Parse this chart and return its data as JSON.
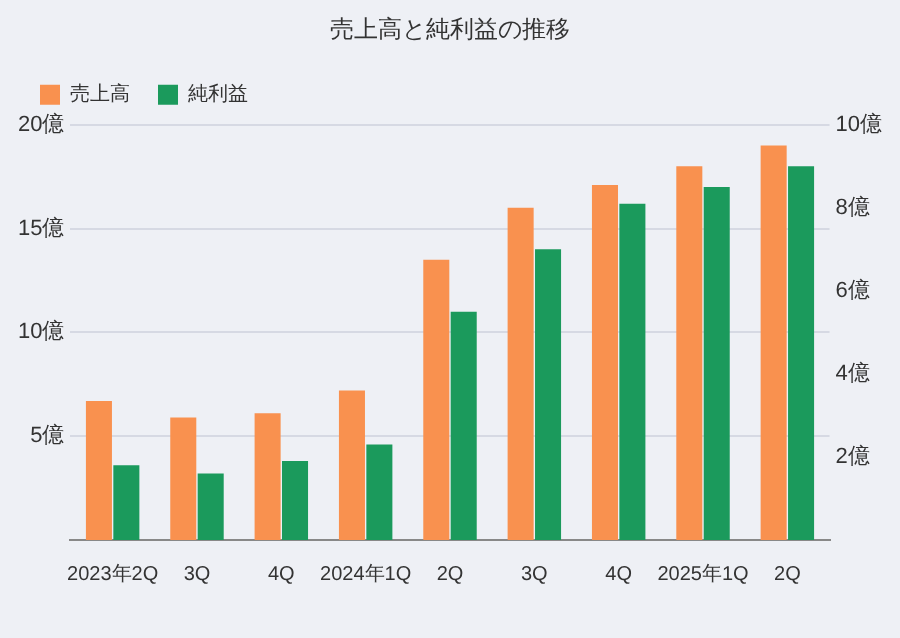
{
  "chart_data": {
    "type": "bar",
    "title": "売上高と純利益の推移",
    "categories": [
      "2023年2Q",
      "3Q",
      "4Q",
      "2024年1Q",
      "2Q",
      "3Q",
      "4Q",
      "2025年1Q",
      "2Q"
    ],
    "series": [
      {
        "name": "売上高",
        "color": "#f9914f",
        "values": [
          6.7,
          5.9,
          6.1,
          7.2,
          13.5,
          16.0,
          17.1,
          18.0,
          19.0
        ]
      },
      {
        "name": "純利益",
        "color": "#1b9a5c",
        "axis": "y2",
        "values": [
          1.8,
          1.6,
          1.9,
          2.3,
          5.5,
          7.0,
          8.1,
          8.5,
          9.0
        ]
      }
    ],
    "ylim": [
      0,
      20
    ],
    "yticks": [
      {
        "value": 5,
        "label": "5億"
      },
      {
        "value": 10,
        "label": "10億"
      },
      {
        "value": 15,
        "label": "15億"
      },
      {
        "value": 20,
        "label": "20億"
      }
    ],
    "y2lim": [
      0,
      10
    ],
    "y2ticks": [
      {
        "value": 2,
        "label": "2億"
      },
      {
        "value": 4,
        "label": "4億"
      },
      {
        "value": 6,
        "label": "6億"
      },
      {
        "value": 8,
        "label": "8億"
      },
      {
        "value": 10,
        "label": "10億"
      }
    ],
    "grid": "y",
    "legend": "top left"
  }
}
